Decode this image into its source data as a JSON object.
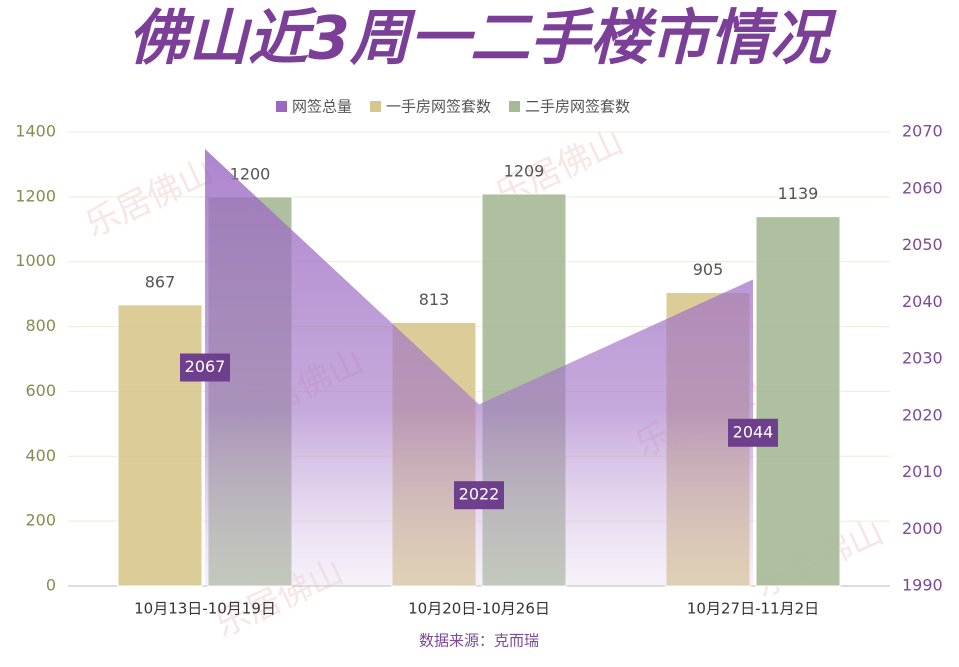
{
  "chart_data": {
    "type": "bar-area",
    "title": "佛山近3周一二手楼市情况",
    "source": "数据来源：克而瑞",
    "watermark": "乐居佛山",
    "categories": [
      "10月13日-10月19日",
      "10月20日-10月26日",
      "10月27日-11月2日"
    ],
    "series": [
      {
        "name": "网签总量",
        "color": "#9a68c2",
        "axis": "y2",
        "kind": "area",
        "values": [
          2067,
          2022,
          2044
        ]
      },
      {
        "name": "一手房网签套数",
        "color": "#d8c78c",
        "kind": "bar",
        "values": [
          867,
          813,
          905
        ]
      },
      {
        "name": "二手房网签套数",
        "color": "#a6b996",
        "kind": "bar",
        "values": [
          1200,
          1209,
          1139
        ]
      }
    ],
    "ylim": [
      0,
      1400
    ],
    "yticks": [
      0,
      200,
      400,
      600,
      800,
      1000,
      1200,
      1400
    ],
    "y2lim": [
      1990,
      2070
    ],
    "y2ticks": [
      1990,
      2000,
      2010,
      2020,
      2030,
      2040,
      2050,
      2060,
      2070
    ],
    "grid": true
  }
}
